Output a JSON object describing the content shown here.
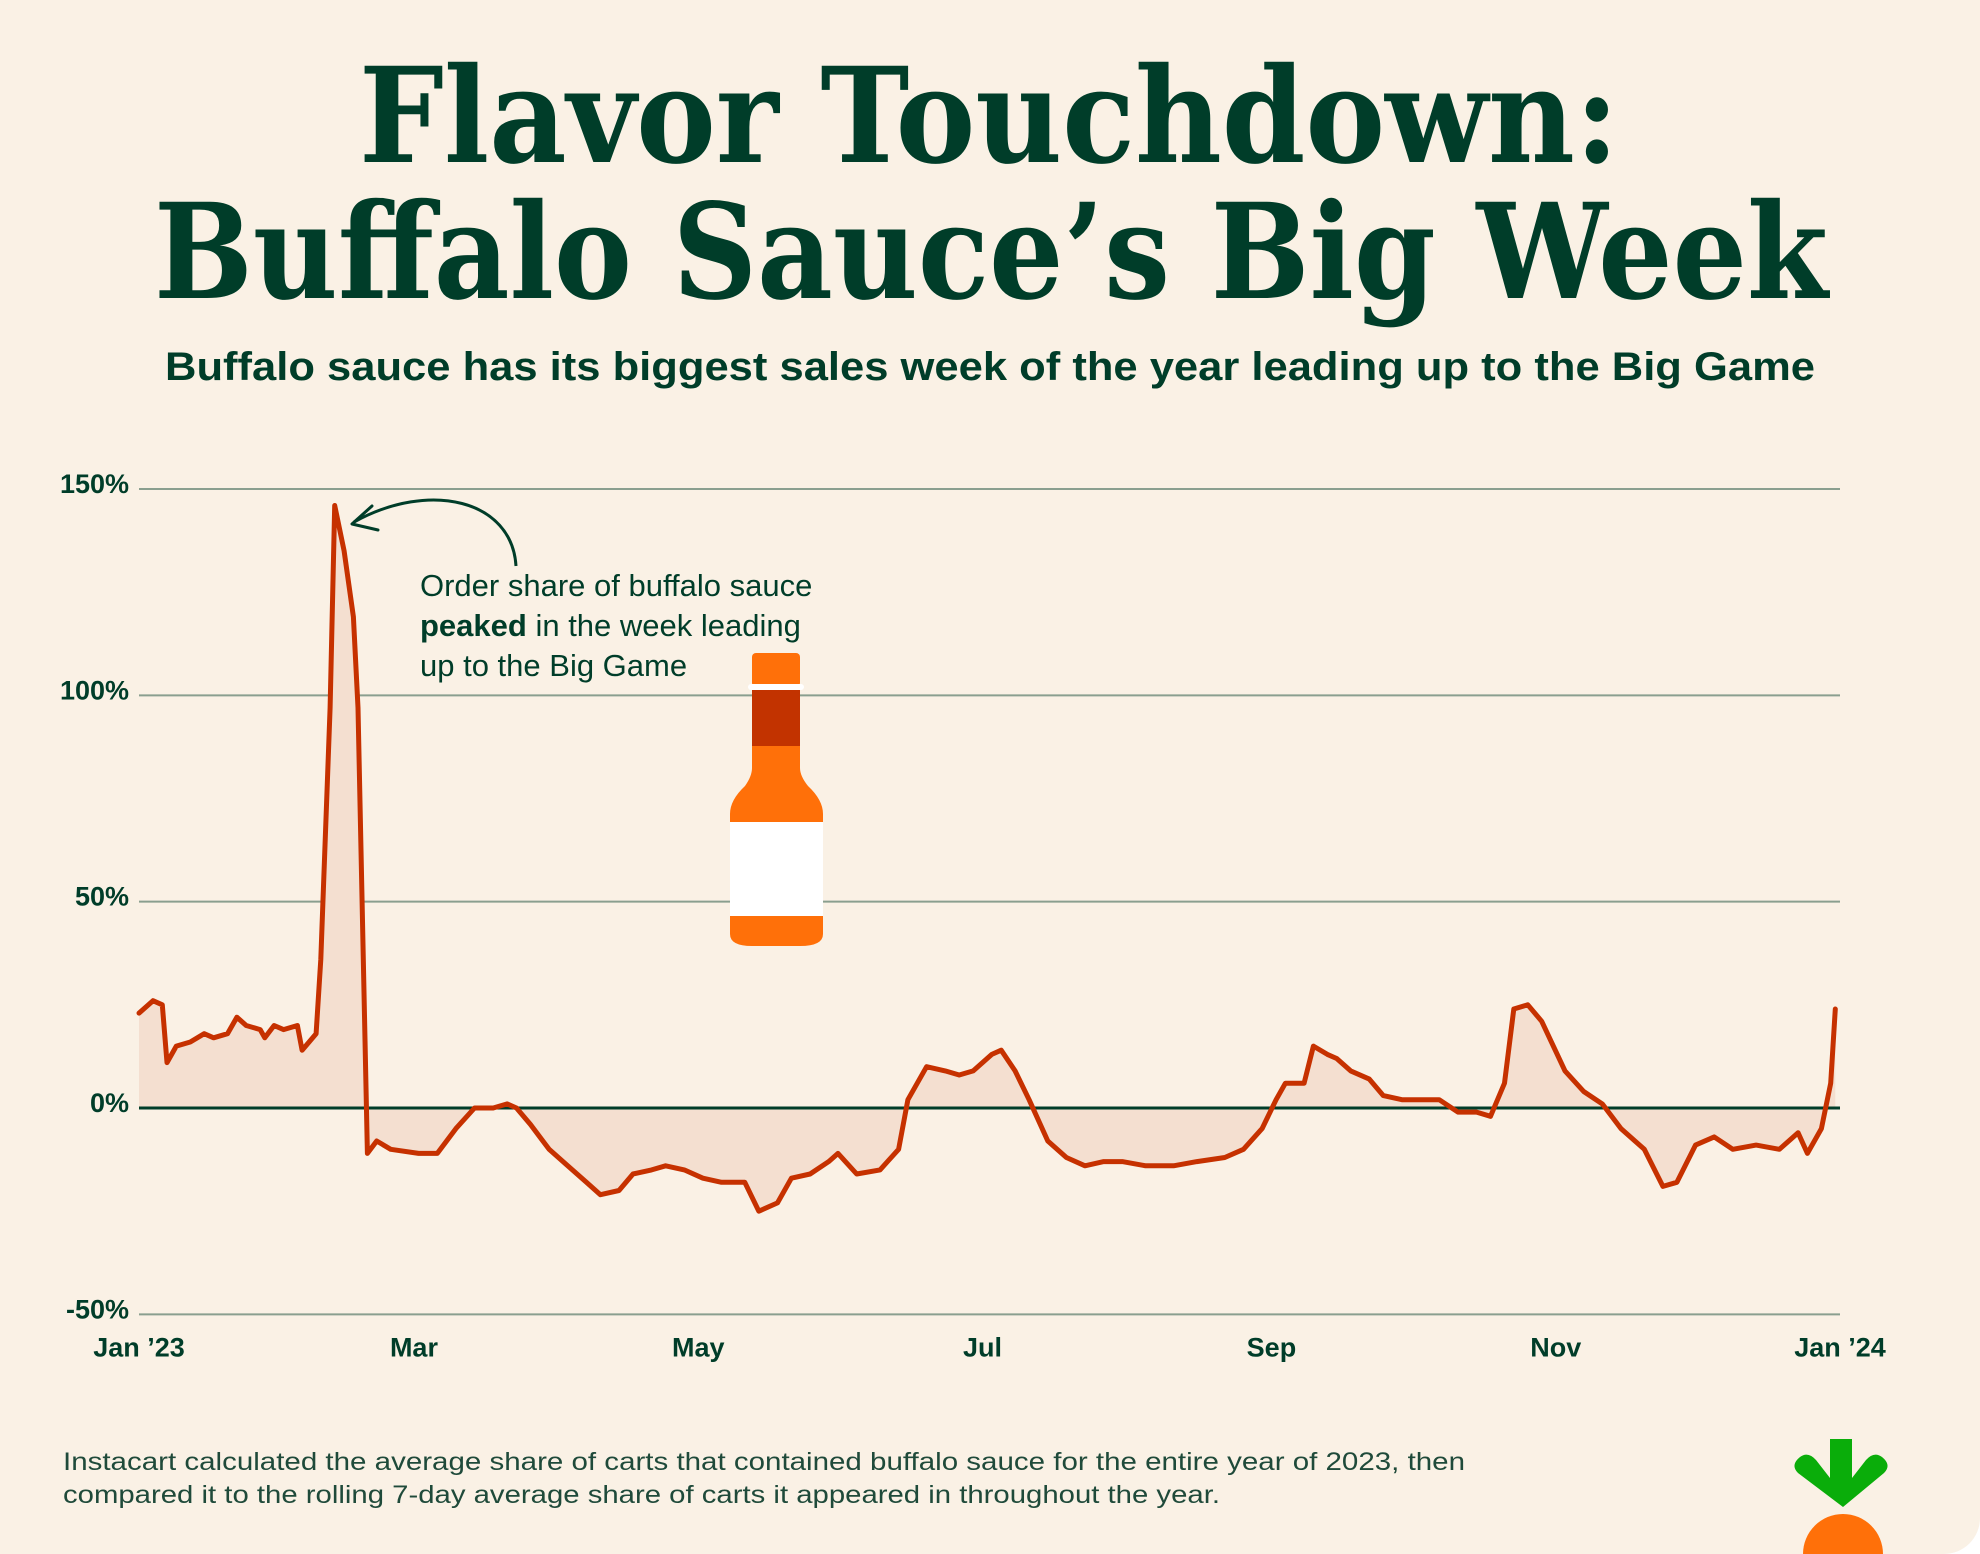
{
  "title_line1": "Flavor Touchdown:",
  "title_line2": "Buffalo Sauce’s Big Week",
  "subtitle": "Buffalo sauce has its biggest sales week of the year leading up to the Big Game",
  "annotation": {
    "line1": "Order share of buffalo sauce",
    "line2_bold": "peaked",
    "line2_rest": " in the week leading",
    "line3": "up to the Big Game"
  },
  "footer": {
    "line1": "Instacart calculated the average share of carts that contained buffalo sauce for the entire year of 2023, then",
    "line2": "compared it to the rolling 7-day average share of carts it appeared in throughout the year."
  },
  "logo": {
    "name": "carrot-logo",
    "colors": {
      "leaf": "#0aad0a",
      "carrot": "#ff7009"
    }
  },
  "colors": {
    "background": "#faf1e5",
    "text": "#003d29",
    "line": "#c63100",
    "fill": "#f4dfd0",
    "grid": "#8a9f8f",
    "bottle": "#ff7009",
    "bottle_band": "#c23300"
  },
  "chart_data": {
    "type": "area",
    "title": "",
    "xlabel": "",
    "ylabel": "",
    "ylim": [
      -50,
      150
    ],
    "xlim_days": [
      0,
      365
    ],
    "grid": true,
    "y_ticks": [
      {
        "value": 150,
        "label": "150%"
      },
      {
        "value": 100,
        "label": "100%"
      },
      {
        "value": 50,
        "label": "50%"
      },
      {
        "value": 0,
        "label": "0%"
      },
      {
        "value": -50,
        "label": "-50%"
      }
    ],
    "x_ticks": [
      {
        "day": 0,
        "label": "Jan ’23"
      },
      {
        "day": 59,
        "label": "Mar"
      },
      {
        "day": 120,
        "label": "May"
      },
      {
        "day": 181,
        "label": "Jul"
      },
      {
        "day": 243,
        "label": "Sep"
      },
      {
        "day": 304,
        "label": "Nov"
      },
      {
        "day": 365,
        "label": "Jan ’24"
      }
    ],
    "series": [
      {
        "day": [
          0,
          3,
          5,
          6,
          8,
          11,
          14,
          16,
          19,
          21,
          23,
          26,
          27,
          29,
          31,
          34,
          35,
          38,
          39,
          41,
          42,
          44,
          46,
          47,
          49,
          51,
          54,
          60,
          64,
          68,
          72,
          76,
          79,
          81,
          84,
          88,
          92,
          96,
          99,
          103,
          106,
          110,
          113,
          117,
          121,
          125,
          130,
          133,
          137,
          140,
          144,
          148,
          150,
          154,
          159,
          163,
          165,
          169,
          173,
          176,
          179,
          183,
          185,
          188,
          191,
          195,
          199,
          203,
          207,
          211,
          216,
          222,
          227,
          233,
          237,
          241,
          244,
          246,
          250,
          252,
          255,
          257,
          260,
          264,
          267,
          271,
          275,
          279,
          283,
          287,
          290,
          293,
          295,
          298,
          301,
          306,
          310,
          314,
          318,
          323,
          327,
          330,
          334,
          338,
          342,
          347,
          352,
          356,
          358,
          361,
          363,
          364
        ],
        "value": [
          23,
          26,
          25,
          11,
          15,
          16,
          18,
          17,
          18,
          22,
          20,
          19,
          17,
          20,
          19,
          20,
          14,
          18,
          36,
          97,
          146,
          135,
          119,
          97,
          -11,
          -8,
          -10,
          -11,
          -11,
          -5,
          0,
          0,
          1,
          0,
          -4,
          -10,
          -14,
          -18,
          -21,
          -20,
          -16,
          -15,
          -14,
          -15,
          -17,
          -18,
          -18,
          -25,
          -23,
          -17,
          -16,
          -13,
          -11,
          -16,
          -15,
          -10,
          2,
          10,
          9,
          8,
          9,
          13,
          14,
          9,
          2,
          -8,
          -12,
          -14,
          -13,
          -13,
          -14,
          -14,
          -13,
          -12,
          -10,
          -5,
          2,
          6,
          6,
          15,
          13,
          12,
          9,
          7,
          3,
          2,
          2,
          2,
          -1,
          -1,
          -2,
          6,
          24,
          25,
          21,
          9,
          4,
          1,
          -5,
          -10,
          -19,
          -18,
          -9,
          -7,
          -10,
          -9,
          -10,
          -6,
          -11,
          -5,
          6,
          24
        ]
      }
    ]
  }
}
